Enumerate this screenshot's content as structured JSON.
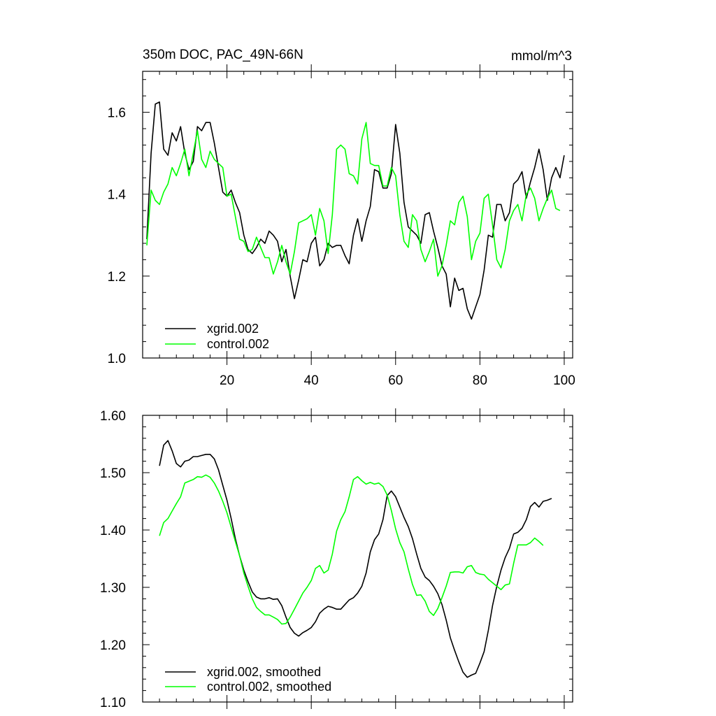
{
  "chart_data": [
    {
      "type": "line",
      "title": "350m DOC, PAC_49N-66N",
      "units": "mmol/m^3",
      "xlim": [
        0,
        102
      ],
      "ylim": [
        1.0,
        1.7
      ],
      "x_ticks": [
        20,
        40,
        60,
        80,
        100
      ],
      "x_tick_labels": [
        "20",
        "40",
        "60",
        "80",
        "100"
      ],
      "y_ticks": [
        1.0,
        1.2,
        1.4,
        1.6
      ],
      "y_tick_labels": [
        "1.0",
        "1.2",
        "1.4",
        "1.6"
      ],
      "legend_position": "bottom-left",
      "series": [
        {
          "name": "xgrid.002",
          "color": "#000000",
          "x_start": 1,
          "values": [
            1.29,
            1.5,
            1.62,
            1.625,
            1.51,
            1.495,
            1.55,
            1.53,
            1.565,
            1.5,
            1.46,
            1.48,
            1.565,
            1.555,
            1.575,
            1.575,
            1.525,
            1.465,
            1.405,
            1.395,
            1.41,
            1.38,
            1.355,
            1.3,
            1.265,
            1.255,
            1.27,
            1.29,
            1.28,
            1.31,
            1.3,
            1.285,
            1.235,
            1.265,
            1.2,
            1.145,
            1.19,
            1.24,
            1.235,
            1.28,
            1.295,
            1.225,
            1.24,
            1.28,
            1.27,
            1.275,
            1.275,
            1.25,
            1.23,
            1.3,
            1.34,
            1.285,
            1.335,
            1.37,
            1.46,
            1.455,
            1.415,
            1.415,
            1.45,
            1.57,
            1.5,
            1.38,
            1.32,
            1.31,
            1.3,
            1.28,
            1.35,
            1.355,
            1.31,
            1.27,
            1.225,
            1.205,
            1.125,
            1.195,
            1.165,
            1.17,
            1.12,
            1.095,
            1.125,
            1.155,
            1.215,
            1.3,
            1.295,
            1.375,
            1.375,
            1.335,
            1.355,
            1.425,
            1.435,
            1.455,
            1.39,
            1.43,
            1.465,
            1.51,
            1.46,
            1.385,
            1.44,
            1.465,
            1.44,
            1.495
          ]
        },
        {
          "name": "control.002",
          "color": "#00FF00",
          "x_start": 1,
          "values": [
            1.275,
            1.41,
            1.385,
            1.375,
            1.405,
            1.425,
            1.465,
            1.445,
            1.475,
            1.51,
            1.445,
            1.5,
            1.555,
            1.485,
            1.465,
            1.505,
            1.485,
            1.475,
            1.465,
            1.395,
            1.4,
            1.345,
            1.29,
            1.285,
            1.26,
            1.265,
            1.295,
            1.27,
            1.245,
            1.245,
            1.205,
            1.235,
            1.275,
            1.235,
            1.205,
            1.26,
            1.33,
            1.335,
            1.34,
            1.35,
            1.3,
            1.365,
            1.335,
            1.255,
            1.35,
            1.51,
            1.52,
            1.51,
            1.45,
            1.445,
            1.425,
            1.535,
            1.575,
            1.475,
            1.47,
            1.47,
            1.42,
            1.42,
            1.465,
            1.445,
            1.35,
            1.285,
            1.27,
            1.35,
            1.335,
            1.265,
            1.235,
            1.26,
            1.29,
            1.2,
            1.225,
            1.275,
            1.335,
            1.325,
            1.38,
            1.395,
            1.345,
            1.24,
            1.285,
            1.305,
            1.39,
            1.4,
            1.325,
            1.24,
            1.22,
            1.265,
            1.335,
            1.36,
            1.375,
            1.335,
            1.4,
            1.415,
            1.39,
            1.335,
            1.365,
            1.39,
            1.41,
            1.365,
            1.36
          ]
        }
      ]
    },
    {
      "type": "line",
      "title": "",
      "xlim": [
        0,
        102
      ],
      "ylim": [
        1.1,
        1.6
      ],
      "y_ticks": [
        1.1,
        1.2,
        1.3,
        1.4,
        1.5,
        1.6
      ],
      "y_tick_labels": [
        "1.10",
        "1.20",
        "1.30",
        "1.40",
        "1.50",
        "1.60"
      ],
      "legend_position": "bottom-left",
      "series": [
        {
          "name": "xgrid.002, smoothed",
          "color": "#000000",
          "x_start": 4,
          "values": [
            1.512,
            1.548,
            1.556,
            1.538,
            1.516,
            1.51,
            1.52,
            1.522,
            1.528,
            1.528,
            1.53,
            1.532,
            1.532,
            1.524,
            1.505,
            1.478,
            1.452,
            1.42,
            1.385,
            1.355,
            1.33,
            1.31,
            1.292,
            1.283,
            1.28,
            1.28,
            1.282,
            1.279,
            1.28,
            1.268,
            1.248,
            1.23,
            1.22,
            1.215,
            1.221,
            1.225,
            1.23,
            1.24,
            1.255,
            1.262,
            1.267,
            1.265,
            1.262,
            1.262,
            1.27,
            1.278,
            1.282,
            1.29,
            1.302,
            1.325,
            1.362,
            1.383,
            1.393,
            1.418,
            1.46,
            1.468,
            1.458,
            1.44,
            1.422,
            1.406,
            1.385,
            1.358,
            1.333,
            1.318,
            1.312,
            1.302,
            1.289,
            1.27,
            1.243,
            1.212,
            1.19,
            1.17,
            1.152,
            1.143,
            1.147,
            1.15,
            1.168,
            1.188,
            1.225,
            1.268,
            1.302,
            1.33,
            1.352,
            1.368,
            1.393,
            1.396,
            1.403,
            1.418,
            1.441,
            1.448,
            1.44,
            1.45,
            1.452,
            1.455
          ]
        },
        {
          "name": "control.002, smoothed",
          "color": "#00FF00",
          "x_start": 4,
          "values": [
            1.39,
            1.413,
            1.42,
            1.433,
            1.446,
            1.458,
            1.482,
            1.485,
            1.488,
            1.493,
            1.492,
            1.496,
            1.492,
            1.482,
            1.468,
            1.45,
            1.43,
            1.405,
            1.38,
            1.355,
            1.325,
            1.302,
            1.28,
            1.265,
            1.258,
            1.252,
            1.252,
            1.248,
            1.244,
            1.236,
            1.237,
            1.248,
            1.262,
            1.276,
            1.29,
            1.3,
            1.312,
            1.333,
            1.338,
            1.325,
            1.33,
            1.358,
            1.398,
            1.418,
            1.432,
            1.458,
            1.488,
            1.493,
            1.486,
            1.48,
            1.483,
            1.48,
            1.482,
            1.476,
            1.461,
            1.434,
            1.402,
            1.378,
            1.362,
            1.332,
            1.305,
            1.286,
            1.287,
            1.276,
            1.258,
            1.251,
            1.263,
            1.282,
            1.302,
            1.326,
            1.327,
            1.327,
            1.325,
            1.336,
            1.338,
            1.326,
            1.323,
            1.322,
            1.314,
            1.308,
            1.302,
            1.296,
            1.304,
            1.306,
            1.342,
            1.374,
            1.374,
            1.374,
            1.378,
            1.386,
            1.38,
            1.373
          ]
        }
      ]
    }
  ]
}
